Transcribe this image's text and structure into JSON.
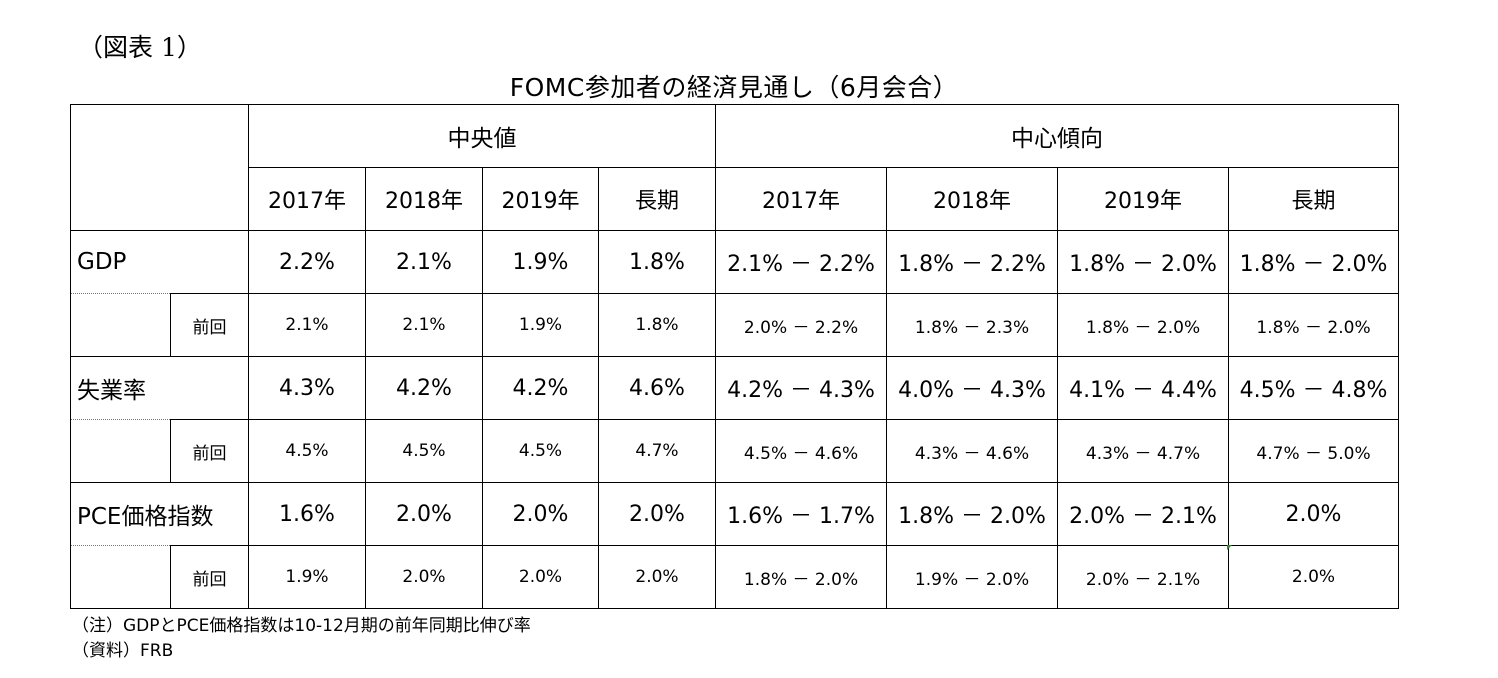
{
  "figure_label": "（図表 1）",
  "title": "FOMC参加者の経済見通し（6月会合）",
  "table": {
    "group_headers": [
      "中央値",
      "中心傾向"
    ],
    "year_headers_median": [
      "2017年",
      "2018年",
      "2019年",
      "長期"
    ],
    "year_headers_central": [
      "2017年",
      "2018年",
      "2019年",
      "長期"
    ],
    "prev_label": "前回",
    "rows": [
      {
        "label": "GDP",
        "current": [
          "2.2%",
          "2.1%",
          "1.9%",
          "1.8%",
          "2.1% － 2.2%",
          "1.8% － 2.2%",
          "1.8% － 2.0%",
          "1.8% － 2.0%"
        ],
        "previous": [
          "2.1%",
          "2.1%",
          "1.9%",
          "1.8%",
          "2.0% － 2.2%",
          "1.8% － 2.3%",
          "1.8% － 2.0%",
          "1.8% － 2.0%"
        ]
      },
      {
        "label": "失業率",
        "current": [
          "4.3%",
          "4.2%",
          "4.2%",
          "4.6%",
          "4.2% － 4.3%",
          "4.0% － 4.3%",
          "4.1% － 4.4%",
          "4.5% － 4.8%"
        ],
        "previous": [
          "4.5%",
          "4.5%",
          "4.5%",
          "4.7%",
          "4.5% － 4.6%",
          "4.3% － 4.6%",
          "4.3% － 4.7%",
          "4.7% － 5.0%"
        ]
      },
      {
        "label": "PCE価格指数",
        "current": [
          "1.6%",
          "2.0%",
          "2.0%",
          "2.0%",
          "1.6% － 1.7%",
          "1.8% － 2.0%",
          "2.0% － 2.1%",
          "2.0%"
        ],
        "previous": [
          "1.9%",
          "2.0%",
          "2.0%",
          "2.0%",
          "1.8% － 2.0%",
          "1.9% － 2.0%",
          "2.0% － 2.1%",
          "2.0%"
        ]
      }
    ]
  },
  "notes": {
    "note": "（注）GDPとPCE価格指数は10-12月期の前年同期比伸び率",
    "source": "（資料）FRB"
  }
}
